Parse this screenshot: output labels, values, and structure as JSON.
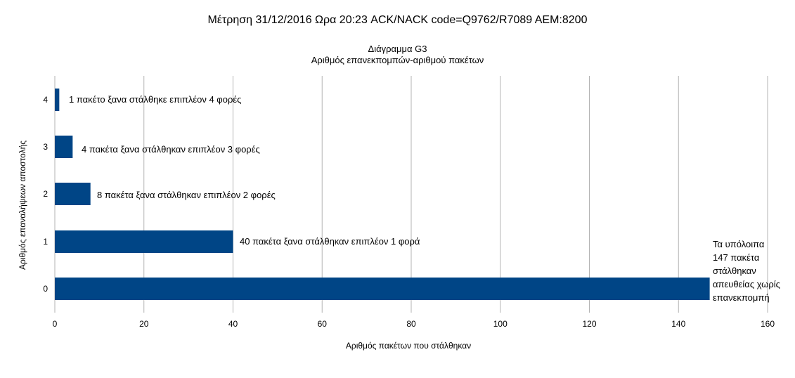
{
  "header": {
    "title": "Μέτρηση 31/12/2016 Ωρα 20:23 ACK/NACK code=Q9762/R7089 AEM:8200"
  },
  "chart_data": {
    "type": "bar",
    "orientation": "horizontal",
    "title": "Διάγραμμα G3",
    "subtitle": "Αριθμός επανεκπομπών-αριθμού πακέτων",
    "xlabel": "Αριθμός πακέτων που στάλθηκαν",
    "ylabel": "Αριθμός επαναλήψεων αποστολής",
    "categories": [
      "0",
      "1",
      "2",
      "3",
      "4"
    ],
    "values": [
      147,
      40,
      8,
      4,
      1
    ],
    "xlim": [
      0,
      160
    ],
    "x_ticks": [
      "0",
      "20",
      "40",
      "60",
      "80",
      "100",
      "120",
      "140",
      "160"
    ],
    "grid": "vertical",
    "bar_color": "#004586",
    "annotations": [
      "Τα υπόλοιπα 147 πακέτα στάλθηκαν απευθείας χωρίς επανεκπομπή",
      "40  πακέτα ξανα στάλθηκαν επιπλέον 1 φορά",
      "8  πακέτα ξανα στάλθηκαν επιπλέον 2 φορές",
      "4 πακέτα ξανα στάλθηκαν επιπλέον 3 φορές",
      "1 πακέτο ξανα στάλθηκε επιπλέον 4 φορές"
    ]
  }
}
